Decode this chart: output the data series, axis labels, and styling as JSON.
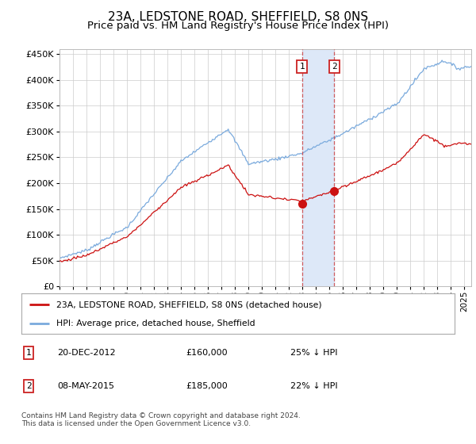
{
  "title": "23A, LEDSTONE ROAD, SHEFFIELD, S8 0NS",
  "subtitle": "Price paid vs. HM Land Registry's House Price Index (HPI)",
  "hpi_color": "#7aaadd",
  "price_color": "#cc1111",
  "ylim": [
    0,
    460000
  ],
  "yticks": [
    0,
    50000,
    100000,
    150000,
    200000,
    250000,
    300000,
    350000,
    400000,
    450000
  ],
  "xmin": 1995.0,
  "xmax": 2025.5,
  "sale1_x": 2012.97,
  "sale1_y": 160000,
  "sale2_x": 2015.36,
  "sale2_y": 185000,
  "legend_label_price": "23A, LEDSTONE ROAD, SHEFFIELD, S8 0NS (detached house)",
  "legend_label_hpi": "HPI: Average price, detached house, Sheffield",
  "note1_label": "1",
  "note1_date": "20-DEC-2012",
  "note1_price": "£160,000",
  "note1_pct": "25% ↓ HPI",
  "note2_label": "2",
  "note2_date": "08-MAY-2015",
  "note2_price": "£185,000",
  "note2_pct": "22% ↓ HPI",
  "footer": "Contains HM Land Registry data © Crown copyright and database right 2024.\nThis data is licensed under the Open Government Licence v3.0.",
  "background_color": "#ffffff",
  "grid_color": "#cccccc",
  "title_fontsize": 11,
  "subtitle_fontsize": 9.5,
  "span_color": "#dde8f8",
  "vline_color": "#cc4444"
}
